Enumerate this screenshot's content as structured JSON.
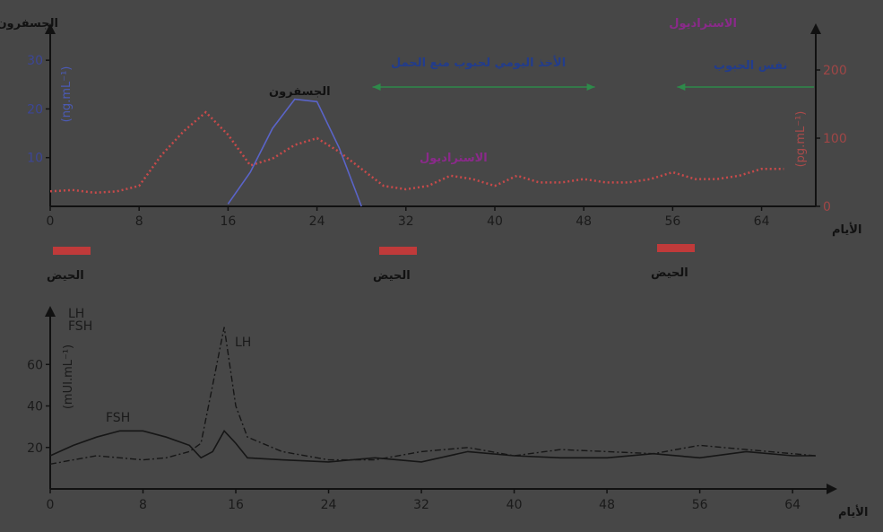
{
  "chart_data": [
    {
      "type": "line",
      "x_label": "الأيام",
      "x_ticks": [
        0,
        8,
        16,
        24,
        32,
        40,
        48,
        56,
        64
      ],
      "x_range": [
        0,
        66
      ],
      "left_axis": {
        "title": "الجسفرون",
        "unit": "(ng.mL⁻¹)",
        "ticks": [
          10,
          20,
          30
        ],
        "range": [
          0,
          35
        ]
      },
      "right_axis": {
        "title": "الاستراديول",
        "unit": "(pg.mL⁻¹)",
        "ticks": [
          0,
          100,
          200
        ],
        "range": [
          0,
          250
        ]
      },
      "series": [
        {
          "name": "الجسفرون",
          "axis": "left",
          "style": "solid",
          "color": "#5a64c8",
          "x": [
            16,
            18,
            20,
            22,
            24,
            26,
            28
          ],
          "y": [
            0.5,
            7,
            16,
            22,
            21.5,
            12,
            0
          ]
        },
        {
          "name": "الاستراديول",
          "axis": "right",
          "style": "dotted",
          "color": "#c84a4a",
          "x": [
            0,
            2,
            4,
            6,
            8,
            10,
            12,
            14,
            16,
            18,
            20,
            22,
            24,
            26,
            28,
            30,
            32,
            34,
            36,
            38,
            40,
            42,
            44,
            46,
            48,
            50,
            52,
            54,
            56,
            58,
            60,
            62,
            64,
            66
          ],
          "y": [
            22,
            24,
            20,
            22,
            30,
            75,
            110,
            138,
            105,
            60,
            70,
            90,
            100,
            80,
            55,
            30,
            25,
            30,
            45,
            40,
            30,
            45,
            35,
            35,
            40,
            35,
            35,
            40,
            50,
            40,
            40,
            45,
            55,
            55
          ]
        }
      ],
      "annotations": [
        {
          "text": "الأخذ اليومي لحبوب منع الحمل",
          "arrow": "both",
          "from": 29,
          "to": 49
        },
        {
          "text": "نفس الحبوب",
          "arrow": "left",
          "from": 56,
          "to": 66
        }
      ]
    },
    {
      "type": "line",
      "x_label": "الأيام",
      "x_ticks": [
        0,
        8,
        16,
        24,
        32,
        40,
        48,
        56,
        64
      ],
      "x_range": [
        0,
        66
      ],
      "y_axis": {
        "unit": "(mUI.mL⁻¹)",
        "title_lines": [
          "LH",
          "FSH"
        ],
        "ticks": [
          20,
          40,
          60
        ],
        "range": [
          0,
          80
        ]
      },
      "series": [
        {
          "name": "FSH",
          "style": "solid",
          "color": "#161616",
          "x": [
            0,
            2,
            4,
            6,
            8,
            10,
            12,
            13,
            14,
            15,
            16,
            17,
            20,
            24,
            28,
            32,
            36,
            40,
            44,
            48,
            52,
            56,
            60,
            64,
            66
          ],
          "y": [
            16,
            21,
            25,
            28,
            28,
            25,
            21,
            15,
            18,
            28,
            22,
            15,
            14,
            13,
            15,
            13,
            18,
            16,
            15,
            15,
            17,
            15,
            18,
            16,
            16
          ]
        },
        {
          "name": "LH",
          "style": "dash-dot",
          "color": "#161616",
          "x": [
            0,
            2,
            4,
            6,
            8,
            10,
            12,
            13,
            14,
            15,
            16,
            17,
            20,
            24,
            28,
            32,
            36,
            40,
            44,
            48,
            52,
            56,
            60,
            64,
            66
          ],
          "y": [
            12,
            14,
            16,
            15,
            14,
            15,
            18,
            22,
            50,
            78,
            40,
            25,
            18,
            14,
            14,
            18,
            20,
            16,
            19,
            18,
            17,
            21,
            19,
            17,
            16
          ]
        }
      ],
      "annotations": [
        {
          "text": "FSH",
          "x": 8,
          "y": 28
        },
        {
          "text": "LH",
          "x": 17,
          "y": 70
        }
      ]
    }
  ],
  "menstruation": {
    "label": "الحيض",
    "days": [
      0,
      29,
      53
    ]
  }
}
